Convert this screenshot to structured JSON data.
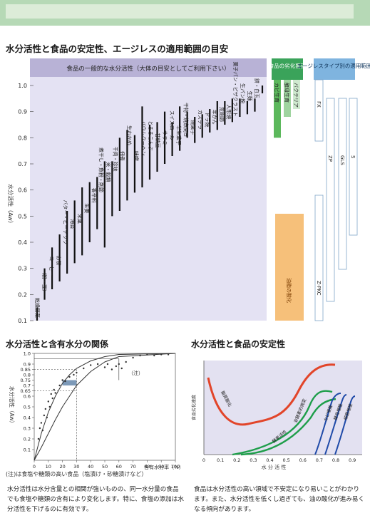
{
  "top_title": "水分活性と食品の安定性、エージレスの適用範囲の目安",
  "main_chart": {
    "header": "食品の一般的な水分活性（大体の目安としてご利用下さい）",
    "ylabel": "水分活性（Aw）",
    "yticks": [
      "0.1",
      "0.2",
      "0.3",
      "0.4",
      "0.5",
      "0.6",
      "0.7",
      "0.8",
      "0.9",
      "1.0"
    ],
    "ylim": [
      0.1,
      1.0
    ],
    "ranges": [
      [
        0.1,
        0.15
      ],
      [
        0.18,
        0.3
      ],
      [
        0.22,
        0.38
      ],
      [
        0.25,
        0.43
      ],
      [
        0.28,
        0.52
      ],
      [
        0.32,
        0.56
      ],
      [
        0.35,
        0.61
      ],
      [
        0.4,
        0.63
      ],
      [
        0.45,
        0.65
      ],
      [
        0.38,
        0.71
      ],
      [
        0.5,
        0.71
      ],
      [
        0.52,
        0.8
      ],
      [
        0.56,
        0.83
      ],
      [
        0.59,
        0.81
      ],
      [
        0.61,
        0.92
      ],
      [
        0.64,
        0.85
      ],
      [
        0.67,
        0.86
      ],
      [
        0.7,
        0.9
      ],
      [
        0.73,
        0.86
      ],
      [
        0.75,
        0.92
      ],
      [
        0.8,
        0.9
      ],
      [
        0.78,
        0.88
      ],
      [
        0.8,
        0.89
      ],
      [
        0.82,
        0.91
      ],
      [
        0.83,
        0.94
      ],
      [
        0.85,
        0.94
      ],
      [
        0.86,
        0.95
      ],
      [
        0.88,
        0.95
      ],
      [
        0.89,
        0.94
      ],
      [
        0.9,
        0.95
      ],
      [
        0.97,
        1.0
      ]
    ],
    "food_labels": [
      {
        "text": "乾燥野菜",
        "at": 0.1
      },
      {
        "text": "（粉・豆）",
        "at": 0.19
      },
      {
        "text": "コーヒー",
        "at": 0.26
      },
      {
        "text": "お茶",
        "at": 0.3
      },
      {
        "text": "バター・ピーナッツ",
        "at": 0.38
      },
      {
        "text": "海苔",
        "at": 0.44
      },
      {
        "text": "米菓",
        "at": 0.46
      },
      {
        "text": "生姜",
        "at": 0.5
      },
      {
        "text": "香辛料",
        "at": 0.54
      },
      {
        "text": "煮干し・魚粉・削節",
        "at": 0.58
      },
      {
        "text": "米・穀類",
        "at": 0.62
      },
      {
        "text": "干肉・珍味",
        "at": 0.66
      },
      {
        "text": "佃煮",
        "at": 0.7
      },
      {
        "text": "生わかめ",
        "at": 0.76
      },
      {
        "text": "味噌",
        "at": 0.7
      },
      {
        "text": "バウムクーヘン",
        "at": 0.72
      },
      {
        "text": "とろろこんぶ",
        "at": 0.74
      },
      {
        "text": "甘納豆",
        "at": 0.75
      },
      {
        "text": "サラミ",
        "at": 0.76
      },
      {
        "text": "スイスロール",
        "at": 0.78
      },
      {
        "text": "半生菓子",
        "at": 0.76
      },
      {
        "text": "干物・焼魚開き",
        "at": 0.79
      },
      {
        "text": "焼菓子",
        "at": 0.8
      },
      {
        "text": "カステラ",
        "at": 0.82
      },
      {
        "text": "ドラ焼",
        "at": 0.83
      },
      {
        "text": "羊かん",
        "at": 0.84
      },
      {
        "text": "荒削節",
        "at": 0.85
      },
      {
        "text": "人形焼",
        "at": 0.86
      },
      {
        "text": "菓子パン・ピザクラスト",
        "at": 0.87
      },
      {
        "text": "生パン粉",
        "at": 0.92
      },
      {
        "text": "生麺",
        "at": 0.93
      },
      {
        "text": "餅・白玉",
        "at": 0.94
      }
    ],
    "cause_header": "食品の劣化要因",
    "causes": [
      {
        "label": "カビ生育",
        "from": 0.8,
        "to": 1.0,
        "color": "#5cb85c"
      },
      {
        "label": "酵母生育",
        "from": 0.88,
        "to": 1.0,
        "color": "#9fd49f"
      },
      {
        "label": "バクテリア",
        "from": 0.91,
        "to": 1.0,
        "color": "#cfe9cf"
      },
      {
        "label": "油脂の酸化",
        "from": 0.1,
        "to": 0.79,
        "color": "#f6c07a"
      }
    ],
    "ageless_header": "エージレスタイプ別の適用範囲",
    "ageless": [
      {
        "label": "FX",
        "from": 0.78,
        "to": 1.0
      },
      {
        "label": "Z-PKC",
        "from": 0.1,
        "to": 0.65
      },
      {
        "label": "ZP",
        "from": 0.1,
        "to": 0.94
      },
      {
        "label": "GLS",
        "from": 0.3,
        "to": 0.94
      },
      {
        "label": "S",
        "from": 0.65,
        "to": 0.94
      }
    ]
  },
  "bottom_left": {
    "title": "水分活性と含有水分の関係",
    "ylabel": "水分活性（Aw）",
    "xlabel": "含有水分率（%）",
    "xticks": [
      "0",
      "10",
      "20",
      "30",
      "40",
      "50",
      "60",
      "70",
      "80",
      "90",
      "100"
    ],
    "yticks": [
      "0.1",
      "0.2",
      "0.3",
      "0.4",
      "0.5",
      "0.6",
      "0.65",
      "0.7",
      "0.75",
      "0.8",
      "0.85",
      "0.9",
      "1.0"
    ],
    "annotation": "（注）",
    "note": "(注)は食塩や糖類の高い食品（塩漬け・砂糖漬けなど）",
    "curve1": [
      [
        0,
        0.0
      ],
      [
        5,
        0.25
      ],
      [
        10,
        0.45
      ],
      [
        15,
        0.6
      ],
      [
        20,
        0.72
      ],
      [
        25,
        0.8
      ],
      [
        30,
        0.86
      ],
      [
        40,
        0.93
      ],
      [
        50,
        0.97
      ],
      [
        60,
        0.99
      ],
      [
        100,
        1.0
      ]
    ],
    "curve2": [
      [
        0,
        0.0
      ],
      [
        5,
        0.12
      ],
      [
        10,
        0.25
      ],
      [
        15,
        0.38
      ],
      [
        20,
        0.5
      ],
      [
        25,
        0.6
      ],
      [
        30,
        0.7
      ],
      [
        40,
        0.83
      ],
      [
        50,
        0.92
      ],
      [
        60,
        0.97
      ],
      [
        100,
        1.0
      ]
    ],
    "points": [
      [
        3,
        0.2
      ],
      [
        4,
        0.3
      ],
      [
        5,
        0.35
      ],
      [
        6,
        0.28
      ],
      [
        7,
        0.42
      ],
      [
        8,
        0.48
      ],
      [
        9,
        0.4
      ],
      [
        10,
        0.55
      ],
      [
        11,
        0.5
      ],
      [
        12,
        0.62
      ],
      [
        13,
        0.58
      ],
      [
        14,
        0.66
      ],
      [
        15,
        0.63
      ],
      [
        18,
        0.7
      ],
      [
        20,
        0.75
      ],
      [
        22,
        0.74
      ],
      [
        25,
        0.78
      ],
      [
        28,
        0.8
      ],
      [
        30,
        0.82
      ],
      [
        35,
        0.86
      ],
      [
        40,
        0.89
      ],
      [
        45,
        0.9
      ],
      [
        50,
        0.87
      ],
      [
        52,
        0.9
      ],
      [
        55,
        0.85
      ],
      [
        58,
        0.88
      ],
      [
        60,
        0.9
      ],
      [
        62,
        0.86
      ],
      [
        65,
        0.92
      ],
      [
        70,
        0.96
      ],
      [
        75,
        0.98
      ],
      [
        80,
        0.99
      ],
      [
        85,
        0.98
      ],
      [
        90,
        0.99
      ],
      [
        95,
        0.99
      ]
    ]
  },
  "bottom_right": {
    "title": "水分活性と食品の安定性",
    "ylabel": "食品劣化速度",
    "xlabel": "水 分 活 性",
    "xticks": [
      "0",
      "0.1",
      "0.2",
      "0.3",
      "0.4",
      "0.5",
      "0.6",
      "0.7",
      "0.8",
      "0.9"
    ],
    "curves": [
      {
        "name": "脂質酸化",
        "color": "#e2452a"
      },
      {
        "name": "非酵素的褐変",
        "color": "#1e9e4a"
      },
      {
        "name": "酵素活性",
        "color": "#1e9e4a"
      },
      {
        "name": "カビ増殖",
        "color": "#1f4aa8"
      },
      {
        "name": "酵母増殖",
        "color": "#1f4aa8"
      },
      {
        "name": "細菌増殖",
        "color": "#1f4aa8"
      }
    ]
  },
  "paragraph_left": "水分活性は水分含量との相関が強いものの、同一水分量の食品でも食塩や糖類の含有により変化します。特に、食塩の添加は水分活性を下げるのに有効です。",
  "paragraph_right": "食品は水分活性の高い領域で不安定になり易いことがわかります。また、水分活性を低くし過ぎても、油の酸化が進み易くなる傾向があります。"
}
